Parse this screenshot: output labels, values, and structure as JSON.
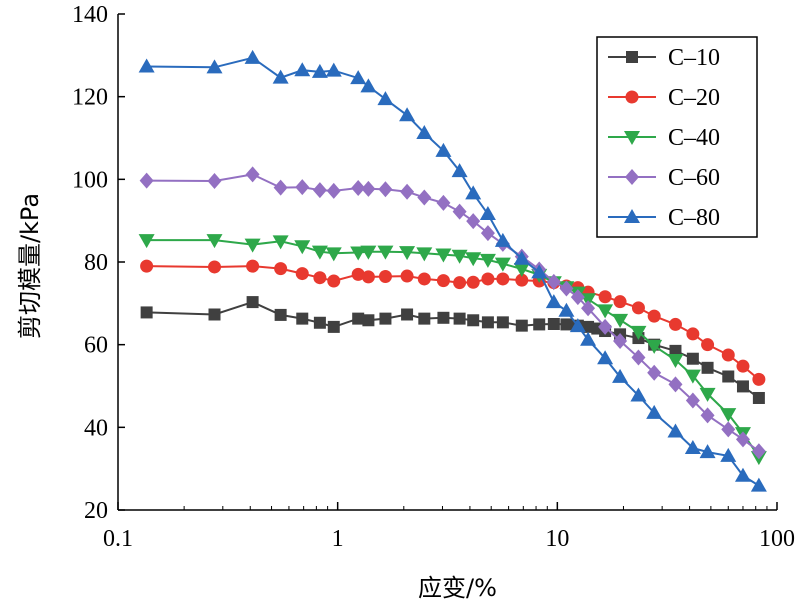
{
  "chart_data": {
    "type": "line",
    "title": "",
    "xlabel": "应变/%",
    "ylabel": "剪切模量/kPa",
    "x_scale": "log",
    "xlim": [
      0.1,
      100
    ],
    "ylim": [
      20,
      140
    ],
    "x_ticks": [
      0.1,
      1,
      10,
      100
    ],
    "x_tick_labels": [
      "0.1",
      "1",
      "10",
      "100"
    ],
    "y_ticks": [
      20,
      40,
      60,
      80,
      100,
      120,
      140
    ],
    "y_tick_labels": [
      "20",
      "40",
      "60",
      "80",
      "100",
      "120",
      "140"
    ],
    "grid": false,
    "legend_position": "top-right",
    "series": [
      {
        "name": "C–10",
        "color": "#404040",
        "marker": "square",
        "x": [
          0.135,
          0.275,
          0.41,
          0.55,
          0.69,
          0.83,
          0.96,
          1.24,
          1.38,
          1.65,
          2.07,
          2.48,
          3.03,
          3.59,
          4.14,
          4.83,
          5.65,
          6.89,
          8.27,
          9.64,
          11.0,
          12.4,
          13.8,
          15.2,
          16.5,
          19.3,
          23.4,
          27.6,
          34.5,
          41.4,
          48.3,
          60.0,
          70.0,
          82.7
        ],
        "y": [
          67.8,
          67.3,
          70.3,
          67.2,
          66.3,
          65.3,
          64.3,
          66.3,
          65.9,
          66.3,
          67.3,
          66.3,
          66.5,
          66.3,
          65.9,
          65.4,
          65.4,
          64.6,
          64.9,
          65.0,
          64.9,
          64.6,
          64.3,
          63.9,
          63.3,
          62.5,
          61.6,
          60.0,
          58.5,
          56.6,
          54.4,
          52.3,
          49.9,
          47.1
        ]
      },
      {
        "name": "C–20",
        "color": "#e8392f",
        "marker": "circle",
        "x": [
          0.135,
          0.275,
          0.41,
          0.55,
          0.69,
          0.83,
          0.96,
          1.24,
          1.38,
          1.65,
          2.07,
          2.48,
          3.03,
          3.59,
          4.14,
          4.83,
          5.65,
          6.89,
          8.27,
          9.64,
          11.0,
          12.4,
          13.8,
          16.5,
          19.3,
          23.4,
          27.6,
          34.5,
          41.4,
          48.3,
          60.0,
          70.0,
          82.7
        ],
        "y": [
          79.0,
          78.8,
          79.0,
          78.4,
          77.2,
          76.2,
          75.4,
          77.0,
          76.4,
          76.5,
          76.6,
          75.9,
          75.5,
          75.0,
          75.1,
          75.9,
          75.9,
          75.6,
          75.4,
          75.0,
          74.2,
          73.8,
          72.7,
          71.6,
          70.4,
          68.9,
          66.9,
          64.9,
          62.6,
          60.0,
          57.5,
          54.8,
          51.6
        ]
      },
      {
        "name": "C–40",
        "color": "#2ea84a",
        "marker": "triangle-down",
        "x": [
          0.135,
          0.275,
          0.41,
          0.55,
          0.69,
          0.83,
          0.96,
          1.24,
          1.38,
          1.65,
          2.07,
          2.48,
          3.03,
          3.59,
          4.14,
          4.83,
          5.65,
          6.89,
          8.27,
          9.64,
          11.0,
          12.4,
          13.8,
          16.5,
          19.3,
          23.4,
          27.6,
          34.5,
          41.4,
          48.3,
          60.0,
          70.0,
          82.7
        ],
        "y": [
          85.3,
          85.3,
          84.2,
          85.0,
          83.8,
          82.5,
          82.1,
          82.3,
          82.5,
          82.5,
          82.4,
          82.1,
          81.8,
          81.5,
          80.9,
          80.5,
          79.6,
          78.3,
          76.9,
          75.1,
          73.9,
          72.6,
          71.0,
          68.3,
          66.0,
          63.1,
          59.7,
          56.3,
          52.5,
          48.1,
          43.2,
          38.6,
          32.8
        ]
      },
      {
        "name": "C–60",
        "color": "#9370c2",
        "marker": "diamond",
        "x": [
          0.135,
          0.275,
          0.41,
          0.55,
          0.69,
          0.83,
          0.96,
          1.24,
          1.38,
          1.65,
          2.07,
          2.48,
          3.03,
          3.59,
          4.14,
          4.83,
          5.65,
          6.89,
          8.27,
          9.64,
          11.0,
          12.4,
          13.8,
          16.5,
          19.3,
          23.4,
          27.6,
          34.5,
          41.4,
          48.3,
          60.0,
          70.0,
          82.7
        ],
        "y": [
          99.7,
          99.6,
          101.2,
          98.0,
          98.1,
          97.4,
          97.2,
          97.9,
          97.7,
          97.6,
          97.0,
          95.6,
          94.3,
          92.2,
          89.9,
          87.0,
          84.4,
          81.3,
          78.2,
          75.2,
          73.6,
          71.5,
          68.8,
          64.3,
          60.9,
          56.9,
          53.2,
          50.4,
          46.5,
          42.9,
          39.5,
          37.1,
          34.2
        ]
      },
      {
        "name": "C–80",
        "color": "#2a6bbd",
        "marker": "triangle-up",
        "x": [
          0.135,
          0.275,
          0.41,
          0.55,
          0.69,
          0.83,
          0.96,
          1.24,
          1.38,
          1.65,
          2.07,
          2.48,
          3.03,
          3.59,
          4.14,
          4.83,
          5.65,
          6.89,
          8.27,
          9.64,
          11.0,
          12.4,
          13.8,
          16.5,
          19.3,
          23.4,
          27.6,
          34.5,
          41.4,
          48.3,
          60.0,
          70.0,
          82.7
        ],
        "y": [
          127.3,
          127.1,
          129.4,
          124.6,
          126.4,
          126.0,
          126.3,
          124.5,
          122.5,
          119.4,
          115.5,
          111.2,
          106.9,
          102.0,
          96.6,
          91.6,
          85.1,
          80.8,
          77.5,
          70.3,
          68.2,
          64.5,
          61.2,
          56.7,
          52.2,
          47.7,
          43.5,
          39.0,
          35.0,
          34.0,
          33.1,
          28.3,
          25.9
        ]
      }
    ]
  }
}
